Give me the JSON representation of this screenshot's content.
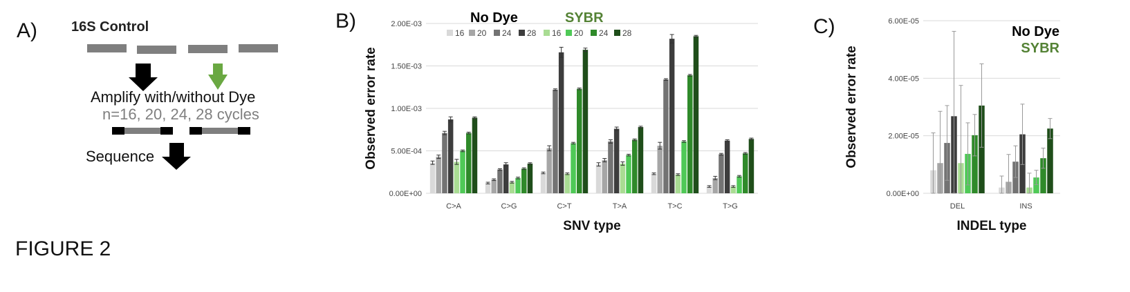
{
  "figure_label": "FIGURE 2",
  "panel_a": {
    "letter": "A)",
    "title": "16S Control",
    "amplify_text": "Amplify with/without Dye",
    "cycles_text": "n=16, 20, 24, 28 cycles",
    "sequence_text": "Sequence",
    "colors": {
      "black_arrow": "#000000",
      "green_arrow": "#6aa842",
      "bar": "#7f7f7f",
      "adapter": "#000000"
    }
  },
  "chart_data": [
    {
      "type": "bar",
      "panel": "B)",
      "xlabel": "SNV type",
      "ylabel": "Observed error rate",
      "categories": [
        "C>A",
        "C>G",
        "C>T",
        "T>A",
        "T>C",
        "T>G"
      ],
      "ylim": [
        0,
        0.002
      ],
      "yticks": [
        "0.00E+00",
        "5.00E-04",
        "1.00E-03",
        "1.50E-03",
        "2.00E-03"
      ],
      "grid": true,
      "legend": {
        "placement": "top",
        "group_labels": [
          "No Dye",
          "SYBR"
        ],
        "group_colors": [
          "#000000",
          "#548235"
        ],
        "entries": [
          "16",
          "20",
          "24",
          "28",
          "16",
          "20",
          "24",
          "28"
        ]
      },
      "series": [
        {
          "name": "16",
          "group": "No Dye",
          "color": "#d9d9d9",
          "values": [
            0.00036,
            0.00012,
            0.00024,
            0.00034,
            0.00023,
            8e-05
          ],
          "errors": [
            2e-05,
            1e-05,
            1e-05,
            2e-05,
            1e-05,
            1e-05
          ]
        },
        {
          "name": "20",
          "group": "No Dye",
          "color": "#a6a6a6",
          "values": [
            0.00043,
            0.00016,
            0.00053,
            0.00039,
            0.00056,
            0.00018
          ],
          "errors": [
            2e-05,
            1e-05,
            3e-05,
            2e-05,
            4e-05,
            2e-05
          ]
        },
        {
          "name": "24",
          "group": "No Dye",
          "color": "#737373",
          "values": [
            0.00071,
            0.00028,
            0.00122,
            0.00061,
            0.00134,
            0.00046
          ],
          "errors": [
            2e-05,
            1e-05,
            1e-05,
            2e-05,
            1e-05,
            1e-05
          ]
        },
        {
          "name": "28",
          "group": "No Dye",
          "color": "#3d3d3d",
          "values": [
            0.00087,
            0.00034,
            0.00166,
            0.00076,
            0.00182,
            0.00062
          ],
          "errors": [
            3e-05,
            2e-05,
            6e-05,
            2e-05,
            5e-05,
            1e-05
          ]
        },
        {
          "name": "16",
          "group": "SYBR",
          "color": "#a9dc93",
          "values": [
            0.00037,
            0.00013,
            0.00023,
            0.00035,
            0.00022,
            8e-05
          ],
          "errors": [
            3e-05,
            1e-05,
            1e-05,
            2e-05,
            1e-05,
            1e-05
          ]
        },
        {
          "name": "20",
          "group": "SYBR",
          "color": "#4fc957",
          "values": [
            0.0005,
            0.00018,
            0.00059,
            0.00045,
            0.00061,
            0.0002
          ],
          "errors": [
            1e-05,
            1e-05,
            1e-05,
            1e-05,
            1e-05,
            1e-05
          ]
        },
        {
          "name": "24",
          "group": "SYBR",
          "color": "#2f8a2a",
          "values": [
            0.00071,
            0.00029,
            0.00123,
            0.00063,
            0.00139,
            0.00047
          ],
          "errors": [
            1e-05,
            1e-05,
            1e-05,
            1e-05,
            1e-05,
            1e-05
          ]
        },
        {
          "name": "28",
          "group": "SYBR",
          "color": "#1f4e1a",
          "values": [
            0.00089,
            0.00035,
            0.00169,
            0.00078,
            0.00185,
            0.00064
          ],
          "errors": [
            1e-05,
            1e-05,
            2e-05,
            1e-05,
            1e-05,
            1e-05
          ]
        }
      ]
    },
    {
      "type": "bar",
      "panel": "C)",
      "xlabel": "INDEL type",
      "ylabel": "Observed error rate",
      "categories": [
        "DEL",
        "INS"
      ],
      "ylim": [
        0,
        6e-05
      ],
      "yticks": [
        "0.00E+00",
        "2.00E-05",
        "4.00E-05",
        "6.00E-05"
      ],
      "grid": true,
      "legend": {
        "placement": "top-right",
        "group_labels": [
          "No Dye",
          "SYBR"
        ],
        "group_colors": [
          "#000000",
          "#548235"
        ]
      },
      "series": [
        {
          "name": "16",
          "group": "No Dye",
          "color": "#d9d9d9",
          "values": [
            8e-06,
            2e-06
          ],
          "errors": [
            1.3e-05,
            4e-06
          ]
        },
        {
          "name": "20",
          "group": "No Dye",
          "color": "#a6a6a6",
          "values": [
            1.05e-05,
            4e-06
          ],
          "errors": [
            1.8e-05,
            9.5e-06
          ]
        },
        {
          "name": "24",
          "group": "No Dye",
          "color": "#737373",
          "values": [
            1.75e-05,
            1.1e-05
          ],
          "errors": [
            1.3e-05,
            5.5e-06
          ]
        },
        {
          "name": "28",
          "group": "No Dye",
          "color": "#3d3d3d",
          "values": [
            2.68e-05,
            2.05e-05
          ],
          "errors": [
            2.95e-05,
            1.05e-05
          ]
        },
        {
          "name": "16",
          "group": "SYBR",
          "color": "#a9dc93",
          "values": [
            1.05e-05,
            2e-06
          ],
          "errors": [
            2.7e-05,
            5e-06
          ]
        },
        {
          "name": "20",
          "group": "SYBR",
          "color": "#4fc957",
          "values": [
            1.37e-05,
            5.5e-06
          ],
          "errors": [
            1.08e-05,
            2.5e-06
          ]
        },
        {
          "name": "24",
          "group": "SYBR",
          "color": "#2f8a2a",
          "values": [
            2.02e-05,
            1.22e-05
          ],
          "errors": [
            7.2e-06,
            3.5e-06
          ]
        },
        {
          "name": "28",
          "group": "SYBR",
          "color": "#1f4e1a",
          "values": [
            3.05e-05,
            2.25e-05
          ],
          "errors": [
            1.45e-05,
            3.5e-06
          ]
        }
      ]
    }
  ]
}
